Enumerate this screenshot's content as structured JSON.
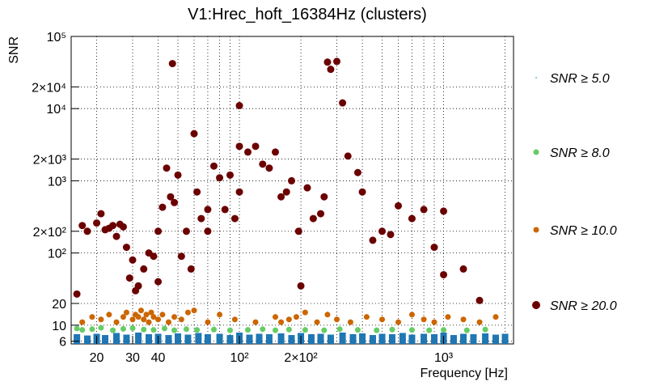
{
  "chart_data": {
    "type": "scatter",
    "title": "V1:Hrec_hoft_16384Hz (clusters)",
    "xlabel": "Frequency [Hz]",
    "ylabel": "SNR",
    "xscale": "log",
    "yscale": "log",
    "xlim": [
      15,
      2200
    ],
    "ylim": [
      5.5,
      100000
    ],
    "grid": true,
    "legend_placement": "right",
    "x_ticks": [
      {
        "value": 20,
        "label": "20"
      },
      {
        "value": 30,
        "label": "30"
      },
      {
        "value": 40,
        "label": "40"
      },
      {
        "value": 100,
        "label": "10²"
      },
      {
        "value": 200,
        "label": "2×10²"
      },
      {
        "value": 1000,
        "label": "10³"
      }
    ],
    "y_ticks": [
      {
        "value": 6,
        "label": "6"
      },
      {
        "value": 10,
        "label": "10"
      },
      {
        "value": 20,
        "label": "20"
      },
      {
        "value": 100,
        "label": "10²"
      },
      {
        "value": 200,
        "label": "2×10²"
      },
      {
        "value": 1000,
        "label": "10³"
      },
      {
        "value": 2000,
        "label": "2×10³"
      },
      {
        "value": 10000,
        "label": "10⁴"
      },
      {
        "value": 20000,
        "label": "2×10⁴"
      },
      {
        "value": 100000,
        "label": "10⁵"
      }
    ],
    "series": [
      {
        "name": "SNR ≥ 5.0",
        "color": "#1f77b4",
        "marker": "dot",
        "x": [
          16,
          18,
          20,
          22,
          25,
          28,
          32,
          36,
          40,
          45,
          50,
          56,
          63,
          70,
          80,
          90,
          100,
          112,
          125,
          140,
          160,
          180,
          200,
          225,
          250,
          280,
          320,
          360,
          400,
          450,
          500,
          560,
          630,
          700,
          800,
          900,
          1000,
          1120,
          1250,
          1400,
          1600,
          1800,
          2000
        ],
        "y": [
          7.5,
          7.2,
          7.6,
          7.3,
          7.8,
          7.4,
          7.9,
          7.5,
          7.6,
          7.3,
          7.7,
          7.4,
          7.8,
          7.5,
          7.6,
          7.3,
          7.9,
          7.4,
          7.6,
          7.5,
          7.7,
          7.3,
          7.8,
          7.5,
          7.6,
          7.4,
          7.9,
          7.5,
          7.7,
          7.3,
          7.6,
          7.5,
          7.8,
          7.4,
          7.6,
          7.5,
          7.9,
          7.3,
          7.6,
          7.5,
          7.7,
          7.4,
          7.6
        ]
      },
      {
        "name": "SNR ≥ 8.0",
        "color": "#66cc66",
        "marker": "circle",
        "x": [
          16,
          17,
          19,
          21,
          24,
          27,
          30,
          34,
          38,
          43,
          48,
          55,
          62,
          75,
          90,
          110,
          130,
          150,
          175,
          210,
          260,
          310,
          380,
          470,
          560,
          700,
          850,
          1000,
          1300,
          1600
        ],
        "y": [
          9.0,
          8.6,
          8.8,
          9.2,
          8.5,
          8.9,
          9.1,
          8.7,
          8.6,
          9.0,
          8.5,
          8.8,
          8.6,
          8.7,
          8.5,
          8.6,
          8.8,
          8.5,
          8.7,
          8.6,
          8.5,
          8.8,
          8.6,
          8.5,
          8.7,
          8.6,
          8.5,
          8.6,
          8.5,
          8.7
        ]
      },
      {
        "name": "SNR ≥ 10.0",
        "color": "#cc6600",
        "marker": "circle",
        "x": [
          17,
          19,
          21,
          23,
          25,
          27,
          28,
          30,
          31,
          32,
          33,
          34,
          35,
          36,
          37,
          38,
          40,
          42,
          45,
          48,
          52,
          56,
          60,
          70,
          80,
          95,
          120,
          150,
          160,
          175,
          190,
          210,
          240,
          270,
          300,
          350,
          420,
          500,
          600,
          700,
          800,
          900,
          1050,
          1250,
          1500,
          1800
        ],
        "y": [
          11,
          13,
          12,
          14,
          11,
          13,
          15,
          12,
          14,
          13,
          16,
          12,
          14,
          11,
          15,
          13,
          12,
          14,
          11,
          13,
          12,
          15,
          16,
          11,
          14,
          12,
          11,
          13,
          11,
          12,
          13,
          15,
          11,
          14,
          12,
          11,
          13,
          12,
          11,
          14,
          12,
          11,
          13,
          12,
          11,
          13
        ]
      },
      {
        "name": "SNR ≥ 20.0",
        "color": "#6b0000",
        "marker": "circle",
        "x": [
          16,
          17,
          18,
          20,
          21,
          22,
          23,
          24,
          25,
          26,
          27,
          28,
          29,
          30,
          31,
          32,
          34,
          36,
          38,
          40,
          40,
          42,
          44,
          46,
          47,
          48,
          50,
          52,
          55,
          58,
          60,
          62,
          65,
          70,
          70,
          75,
          80,
          85,
          90,
          95,
          100,
          100,
          100,
          110,
          120,
          130,
          140,
          150,
          160,
          170,
          180,
          195,
          200,
          215,
          230,
          250,
          260,
          270,
          280,
          300,
          320,
          340,
          380,
          400,
          450,
          500,
          550,
          600,
          700,
          800,
          900,
          1000,
          1000,
          1250,
          1500
        ],
        "y": [
          27,
          240,
          200,
          260,
          350,
          210,
          220,
          240,
          170,
          250,
          230,
          120,
          45,
          80,
          30,
          35,
          60,
          100,
          90,
          40,
          200,
          430,
          1500,
          600,
          42000,
          500,
          1200,
          90,
          200,
          60,
          4500,
          700,
          300,
          400,
          200,
          1600,
          1100,
          400,
          1200,
          300,
          11000,
          3000,
          700,
          2500,
          3000,
          1700,
          1500,
          2500,
          600,
          700,
          1000,
          200,
          35,
          800,
          300,
          350,
          600,
          44000,
          35000,
          45000,
          12000,
          2200,
          1300,
          700,
          150,
          200,
          180,
          450,
          300,
          400,
          120,
          380,
          50,
          60,
          22
        ]
      }
    ]
  }
}
